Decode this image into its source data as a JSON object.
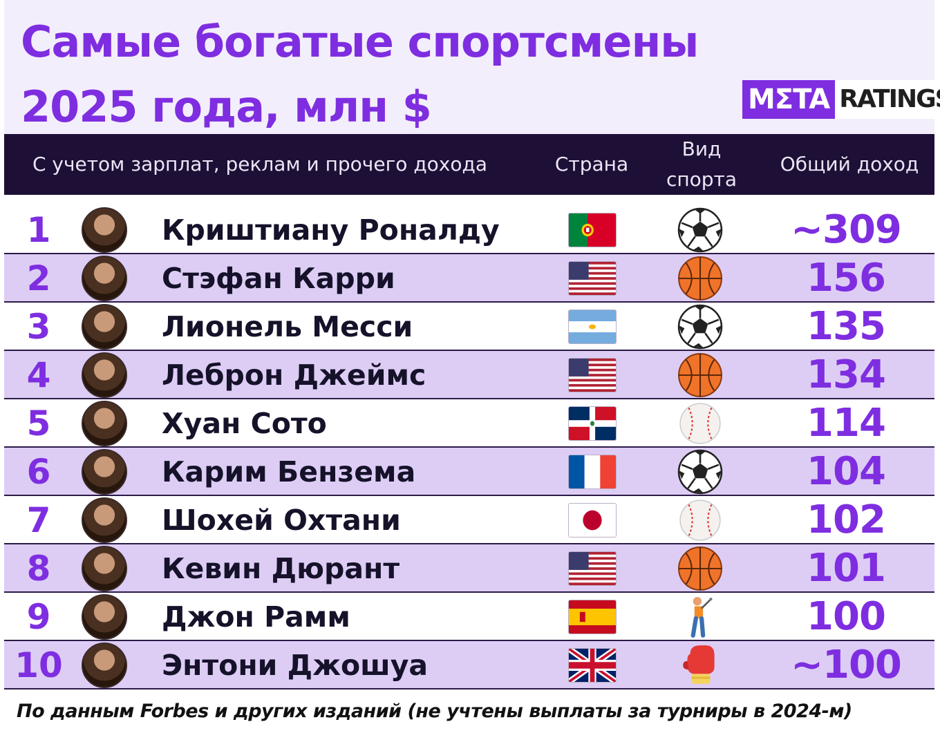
{
  "title": "Самые богатые спортсмены 2025 года, млн $",
  "logo": {
    "left": "MΣTA",
    "right": "RATINGS"
  },
  "header": {
    "name_col": "С учетом зарплат, реклам и прочего дохода",
    "country_col": "Страна",
    "sport_col": "Вид спорта",
    "income_col": "Общий доход"
  },
  "chart_data": {
    "type": "table",
    "unit": "млн $",
    "columns": [
      "rank",
      "name",
      "country",
      "sport",
      "income"
    ],
    "rows": [
      {
        "rank": "1",
        "name": "Криштиану Роналду",
        "country_flag": "portugal-flag",
        "sport_icon": "soccer-ball-icon",
        "income": "~309",
        "value": 309
      },
      {
        "rank": "2",
        "name": "Стэфан Карри",
        "country_flag": "usa-flag",
        "sport_icon": "basketball-icon",
        "income": "156",
        "value": 156
      },
      {
        "rank": "3",
        "name": "Лионель Месси",
        "country_flag": "argentina-flag",
        "sport_icon": "soccer-ball-icon",
        "income": "135",
        "value": 135
      },
      {
        "rank": "4",
        "name": "Леброн Джеймс",
        "country_flag": "usa-flag",
        "sport_icon": "basketball-icon",
        "income": "134",
        "value": 134
      },
      {
        "rank": "5",
        "name": "Хуан Сото",
        "country_flag": "dominican-republic-flag",
        "sport_icon": "baseball-icon",
        "income": "114",
        "value": 114
      },
      {
        "rank": "6",
        "name": "Карим Бензема",
        "country_flag": "france-flag",
        "sport_icon": "soccer-ball-icon",
        "income": "104",
        "value": 104
      },
      {
        "rank": "7",
        "name": "Шохей Охтани",
        "country_flag": "japan-flag",
        "sport_icon": "baseball-icon",
        "income": "102",
        "value": 102
      },
      {
        "rank": "8",
        "name": "Кевин Дюрант",
        "country_flag": "usa-flag",
        "sport_icon": "basketball-icon",
        "income": "101",
        "value": 101
      },
      {
        "rank": "9",
        "name": "Джон Рамм",
        "country_flag": "spain-flag",
        "sport_icon": "golfer-icon",
        "income": "100",
        "value": 100
      },
      {
        "rank": "10",
        "name": "Энтони Джошуа",
        "country_flag": "uk-flag",
        "sport_icon": "boxing-glove-icon",
        "income": "~100",
        "value": 100
      }
    ]
  },
  "colors": {
    "accent": "#7e2ee0",
    "header_bg": "#1e0f36",
    "alt_row": "#ddcdf5",
    "top_bg": "#f3eefb"
  },
  "footer": "По данным Forbes и других изданий (не учтены выплаты за турниры в 2024-м)"
}
